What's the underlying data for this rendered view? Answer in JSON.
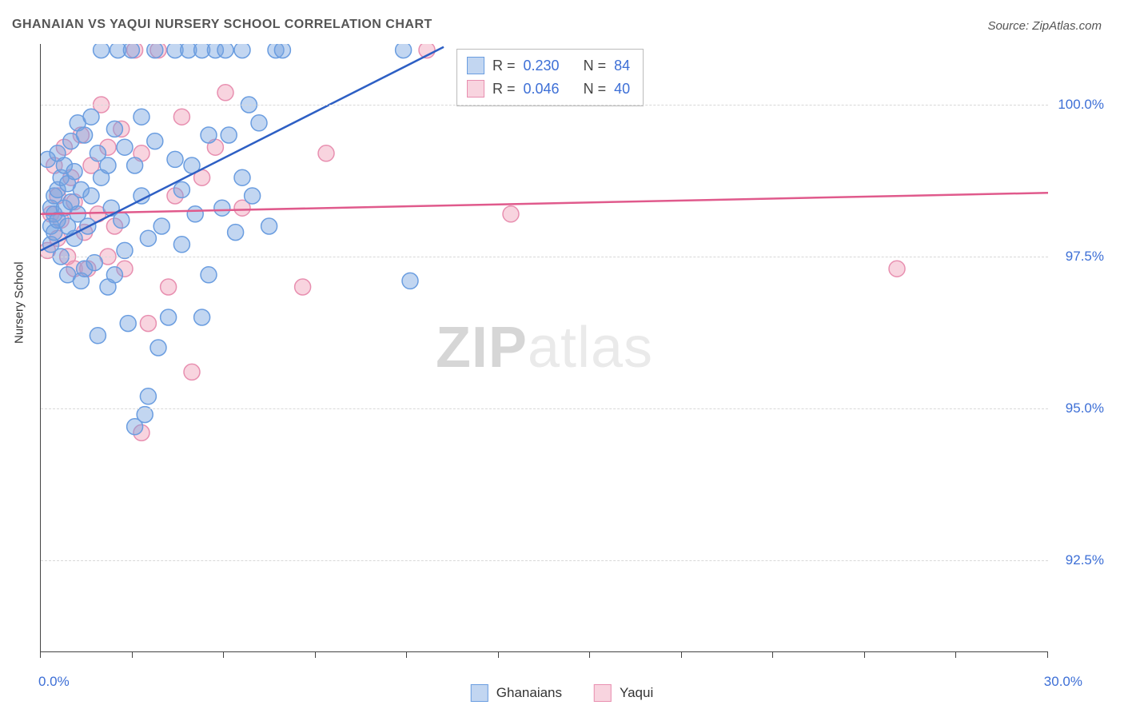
{
  "title": "GHANAIAN VS YAQUI NURSERY SCHOOL CORRELATION CHART",
  "source": "Source: ZipAtlas.com",
  "watermark_bold": "ZIP",
  "watermark_light": "atlas",
  "chart": {
    "type": "scatter",
    "xlim": [
      0,
      30
    ],
    "ylim": [
      91,
      101
    ],
    "y_ticks": [
      92.5,
      95.0,
      97.5,
      100.0
    ],
    "y_tick_labels": [
      "92.5%",
      "95.0%",
      "97.5%",
      "100.0%"
    ],
    "x_ticks": [
      0,
      2.727,
      5.454,
      8.182,
      10.909,
      13.636,
      16.363,
      19.091,
      21.818,
      24.545,
      27.272,
      30
    ],
    "x_start_label": "0.0%",
    "x_end_label": "30.0%",
    "y_axis_title": "Nursery School",
    "background_color": "#ffffff",
    "grid_color": "#d8d8d8",
    "axis_color": "#444444",
    "label_color": "#3d6fd6",
    "marker_radius": 10,
    "marker_stroke_width": 1.5,
    "line_width": 2.5,
    "series": {
      "ghanaians": {
        "label": "Ghanaians",
        "fill": "rgba(120,165,225,0.45)",
        "stroke": "#6a9de0",
        "line_color": "#2d5fc4",
        "R": "0.230",
        "N": "84",
        "regression": {
          "x1": 0,
          "y1": 97.6,
          "x2": 12.0,
          "y2": 100.95
        },
        "points": [
          [
            0.2,
            99.1
          ],
          [
            0.3,
            98.3
          ],
          [
            0.3,
            98.0
          ],
          [
            0.3,
            97.7
          ],
          [
            0.4,
            98.5
          ],
          [
            0.4,
            98.2
          ],
          [
            0.4,
            97.9
          ],
          [
            0.5,
            99.2
          ],
          [
            0.5,
            98.6
          ],
          [
            0.5,
            98.1
          ],
          [
            0.6,
            97.5
          ],
          [
            0.6,
            98.8
          ],
          [
            0.7,
            99.0
          ],
          [
            0.7,
            98.3
          ],
          [
            0.8,
            98.7
          ],
          [
            0.8,
            97.2
          ],
          [
            0.8,
            98.0
          ],
          [
            0.9,
            99.4
          ],
          [
            0.9,
            98.4
          ],
          [
            1.0,
            98.9
          ],
          [
            1.0,
            97.8
          ],
          [
            1.1,
            99.7
          ],
          [
            1.1,
            98.2
          ],
          [
            1.2,
            97.1
          ],
          [
            1.2,
            98.6
          ],
          [
            1.3,
            99.5
          ],
          [
            1.3,
            97.3
          ],
          [
            1.4,
            98.0
          ],
          [
            1.5,
            99.8
          ],
          [
            1.5,
            98.5
          ],
          [
            1.6,
            97.4
          ],
          [
            1.7,
            99.2
          ],
          [
            1.7,
            96.2
          ],
          [
            1.8,
            98.8
          ],
          [
            1.8,
            100.9
          ],
          [
            2.0,
            99.0
          ],
          [
            2.0,
            97.0
          ],
          [
            2.1,
            98.3
          ],
          [
            2.2,
            99.6
          ],
          [
            2.2,
            97.2
          ],
          [
            2.3,
            100.9
          ],
          [
            2.4,
            98.1
          ],
          [
            2.5,
            99.3
          ],
          [
            2.5,
            97.6
          ],
          [
            2.6,
            96.4
          ],
          [
            2.7,
            100.9
          ],
          [
            2.8,
            99.0
          ],
          [
            2.8,
            94.7
          ],
          [
            3.0,
            98.5
          ],
          [
            3.0,
            99.8
          ],
          [
            3.1,
            94.9
          ],
          [
            3.2,
            97.8
          ],
          [
            3.2,
            95.2
          ],
          [
            3.4,
            99.4
          ],
          [
            3.4,
            100.9
          ],
          [
            3.5,
            96.0
          ],
          [
            3.6,
            98.0
          ],
          [
            3.8,
            96.5
          ],
          [
            4.0,
            100.9
          ],
          [
            4.0,
            99.1
          ],
          [
            4.2,
            98.6
          ],
          [
            4.2,
            97.7
          ],
          [
            4.4,
            100.9
          ],
          [
            4.5,
            99.0
          ],
          [
            4.6,
            98.2
          ],
          [
            4.8,
            100.9
          ],
          [
            4.8,
            96.5
          ],
          [
            5.0,
            99.5
          ],
          [
            5.0,
            97.2
          ],
          [
            5.2,
            100.9
          ],
          [
            5.4,
            98.3
          ],
          [
            5.5,
            100.9
          ],
          [
            5.6,
            99.5
          ],
          [
            5.8,
            97.9
          ],
          [
            6.0,
            100.9
          ],
          [
            6.0,
            98.8
          ],
          [
            6.2,
            100.0
          ],
          [
            6.3,
            98.5
          ],
          [
            6.5,
            99.7
          ],
          [
            6.8,
            98.0
          ],
          [
            7.0,
            100.9
          ],
          [
            7.2,
            100.9
          ],
          [
            11.0,
            97.1
          ],
          [
            10.8,
            100.9
          ]
        ]
      },
      "yaqui": {
        "label": "Yaqui",
        "fill": "rgba(240,160,185,0.45)",
        "stroke": "#e88fb0",
        "line_color": "#e05a8c",
        "R": "0.046",
        "N": "40",
        "regression": {
          "x1": 0,
          "y1": 98.2,
          "x2": 30,
          "y2": 98.55
        },
        "points": [
          [
            0.2,
            97.6
          ],
          [
            0.3,
            98.2
          ],
          [
            0.4,
            99.0
          ],
          [
            0.5,
            97.8
          ],
          [
            0.5,
            98.5
          ],
          [
            0.6,
            98.1
          ],
          [
            0.7,
            99.3
          ],
          [
            0.8,
            97.5
          ],
          [
            0.9,
            98.8
          ],
          [
            1.0,
            97.3
          ],
          [
            1.0,
            98.4
          ],
          [
            1.2,
            99.5
          ],
          [
            1.3,
            97.9
          ],
          [
            1.4,
            97.3
          ],
          [
            1.5,
            99.0
          ],
          [
            1.7,
            98.2
          ],
          [
            1.8,
            100.0
          ],
          [
            2.0,
            99.3
          ],
          [
            2.0,
            97.5
          ],
          [
            2.2,
            98.0
          ],
          [
            2.4,
            99.6
          ],
          [
            2.5,
            97.3
          ],
          [
            2.8,
            100.9
          ],
          [
            3.0,
            99.2
          ],
          [
            3.0,
            94.6
          ],
          [
            3.2,
            96.4
          ],
          [
            3.5,
            100.9
          ],
          [
            3.8,
            97.0
          ],
          [
            4.0,
            98.5
          ],
          [
            4.2,
            99.8
          ],
          [
            4.5,
            95.6
          ],
          [
            4.8,
            98.8
          ],
          [
            5.2,
            99.3
          ],
          [
            5.5,
            100.2
          ],
          [
            6.0,
            98.3
          ],
          [
            7.8,
            97.0
          ],
          [
            8.5,
            99.2
          ],
          [
            11.5,
            100.9
          ],
          [
            14.0,
            98.2
          ],
          [
            25.5,
            97.3
          ]
        ]
      }
    }
  },
  "stats_labels": {
    "R": "R =",
    "N": "N ="
  }
}
